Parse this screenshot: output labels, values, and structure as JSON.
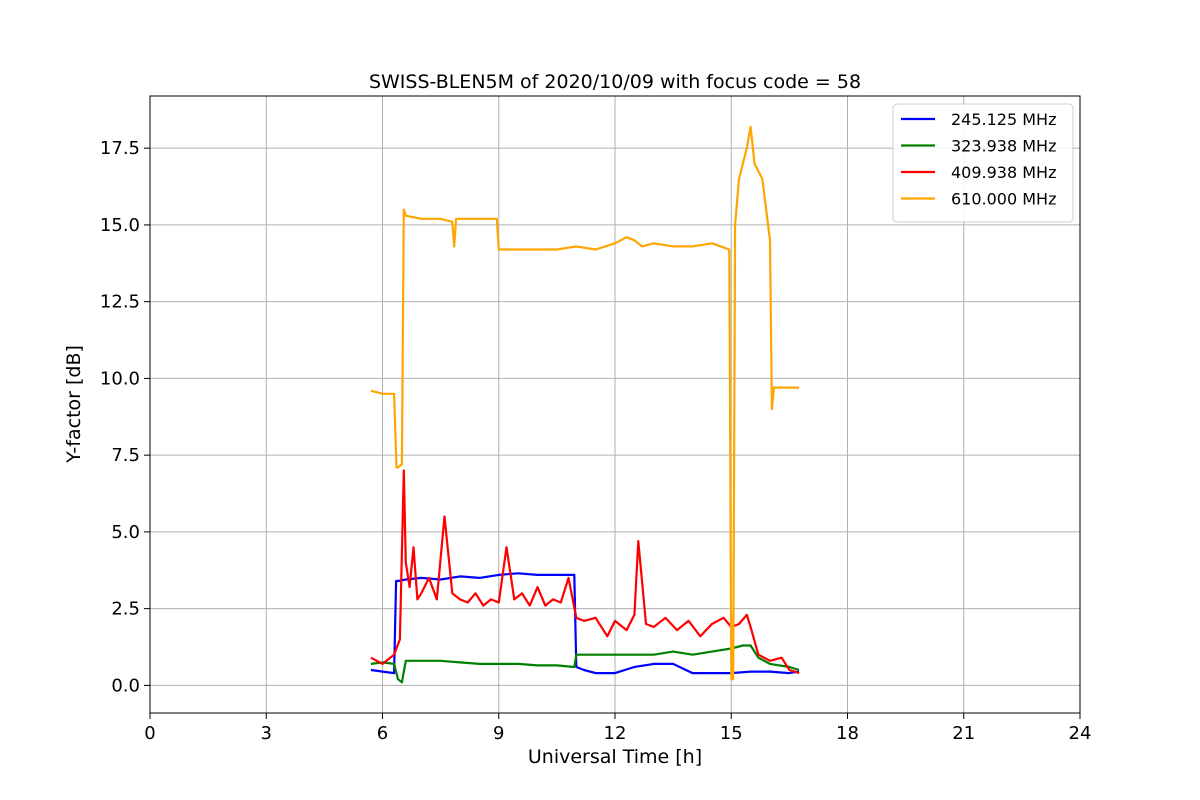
{
  "chart_data": {
    "type": "line",
    "title": "SWISS-BLEN5M of 2020/10/09 with focus code = 58",
    "xlabel": "Universal Time [h]",
    "ylabel": "Y-factor [dB]",
    "xlim": [
      0,
      24
    ],
    "ylim": [
      -0.9,
      19.2
    ],
    "xticks": [
      0,
      3,
      6,
      9,
      12,
      15,
      18,
      21,
      24
    ],
    "xtick_labels": [
      "0",
      "3",
      "6",
      "9",
      "12",
      "15",
      "18",
      "21",
      "24"
    ],
    "yticks": [
      0.0,
      2.5,
      5.0,
      7.5,
      10.0,
      12.5,
      15.0,
      17.5
    ],
    "ytick_labels": [
      "0.0",
      "2.5",
      "5.0",
      "7.5",
      "10.0",
      "12.5",
      "15.0",
      "17.5"
    ],
    "grid": true,
    "legend_position": "top-right",
    "series": [
      {
        "name": "245.125 MHz",
        "color": "#0000ff",
        "x": [
          5.7,
          6.0,
          6.3,
          6.35,
          6.4,
          6.6,
          7.0,
          7.5,
          8.0,
          8.5,
          9.0,
          9.5,
          10.0,
          10.5,
          10.95,
          11.0,
          11.2,
          11.5,
          12.0,
          12.5,
          13.0,
          13.5,
          14.0,
          14.5,
          15.0,
          15.5,
          16.0,
          16.5,
          16.75
        ],
        "y": [
          0.5,
          0.45,
          0.4,
          3.4,
          3.4,
          3.45,
          3.5,
          3.45,
          3.55,
          3.5,
          3.6,
          3.65,
          3.6,
          3.6,
          3.6,
          0.6,
          0.5,
          0.4,
          0.4,
          0.6,
          0.7,
          0.7,
          0.4,
          0.4,
          0.4,
          0.45,
          0.45,
          0.4,
          0.45
        ]
      },
      {
        "name": "323.938 MHz",
        "color": "#008000",
        "x": [
          5.7,
          6.0,
          6.3,
          6.4,
          6.5,
          6.6,
          7.0,
          7.5,
          8.0,
          8.5,
          9.0,
          9.5,
          10.0,
          10.5,
          10.95,
          11.0,
          11.5,
          12.0,
          12.5,
          13.0,
          13.5,
          14.0,
          14.5,
          15.0,
          15.3,
          15.5,
          15.7,
          16.0,
          16.5,
          16.75
        ],
        "y": [
          0.7,
          0.75,
          0.7,
          0.2,
          0.1,
          0.8,
          0.8,
          0.8,
          0.75,
          0.7,
          0.7,
          0.7,
          0.65,
          0.65,
          0.6,
          1.0,
          1.0,
          1.0,
          1.0,
          1.0,
          1.1,
          1.0,
          1.1,
          1.2,
          1.3,
          1.3,
          0.9,
          0.7,
          0.6,
          0.5
        ]
      },
      {
        "name": "409.938 MHz",
        "color": "#ff0000",
        "x": [
          5.7,
          6.0,
          6.3,
          6.45,
          6.55,
          6.6,
          6.7,
          6.8,
          6.9,
          7.0,
          7.2,
          7.4,
          7.6,
          7.8,
          8.0,
          8.2,
          8.4,
          8.6,
          8.8,
          9.0,
          9.2,
          9.4,
          9.6,
          9.8,
          10.0,
          10.2,
          10.4,
          10.6,
          10.8,
          11.0,
          11.2,
          11.5,
          11.8,
          12.0,
          12.3,
          12.5,
          12.6,
          12.8,
          13.0,
          13.3,
          13.6,
          13.9,
          14.2,
          14.5,
          14.8,
          15.0,
          15.2,
          15.4,
          15.5,
          15.7,
          16.0,
          16.3,
          16.5,
          16.75
        ],
        "y": [
          0.9,
          0.7,
          1.0,
          1.5,
          7.0,
          4.0,
          3.2,
          4.5,
          2.8,
          3.0,
          3.5,
          2.8,
          5.5,
          3.0,
          2.8,
          2.7,
          3.0,
          2.6,
          2.8,
          2.7,
          4.5,
          2.8,
          3.0,
          2.6,
          3.2,
          2.6,
          2.8,
          2.7,
          3.5,
          2.2,
          2.1,
          2.2,
          1.6,
          2.1,
          1.8,
          2.3,
          4.7,
          2.0,
          1.9,
          2.2,
          1.8,
          2.1,
          1.6,
          2.0,
          2.2,
          1.9,
          2.0,
          2.3,
          1.9,
          1.0,
          0.8,
          0.9,
          0.5,
          0.4
        ]
      },
      {
        "name": "610.000 MHz",
        "color": "#ffa500",
        "x": [
          5.7,
          6.0,
          6.3,
          6.36,
          6.4,
          6.5,
          6.55,
          6.6,
          7.0,
          7.5,
          7.8,
          7.85,
          7.9,
          8.5,
          8.95,
          9.0,
          9.5,
          10.0,
          10.5,
          11.0,
          11.5,
          12.0,
          12.3,
          12.5,
          12.7,
          13.0,
          13.5,
          14.0,
          14.5,
          14.95,
          15.0,
          15.05,
          15.1,
          15.2,
          15.4,
          15.5,
          15.6,
          15.8,
          16.0,
          16.05,
          16.1,
          16.3,
          16.5,
          16.75
        ],
        "y": [
          9.6,
          9.5,
          9.5,
          7.1,
          7.1,
          7.2,
          15.5,
          15.3,
          15.2,
          15.2,
          15.1,
          14.3,
          15.2,
          15.2,
          15.2,
          14.2,
          14.2,
          14.2,
          14.2,
          14.3,
          14.2,
          14.4,
          14.6,
          14.5,
          14.3,
          14.4,
          14.3,
          14.3,
          14.4,
          14.2,
          0.2,
          0.2,
          15.0,
          16.5,
          17.5,
          18.2,
          17.0,
          16.5,
          14.5,
          9.0,
          9.7,
          9.7,
          9.7,
          9.7
        ]
      }
    ]
  }
}
